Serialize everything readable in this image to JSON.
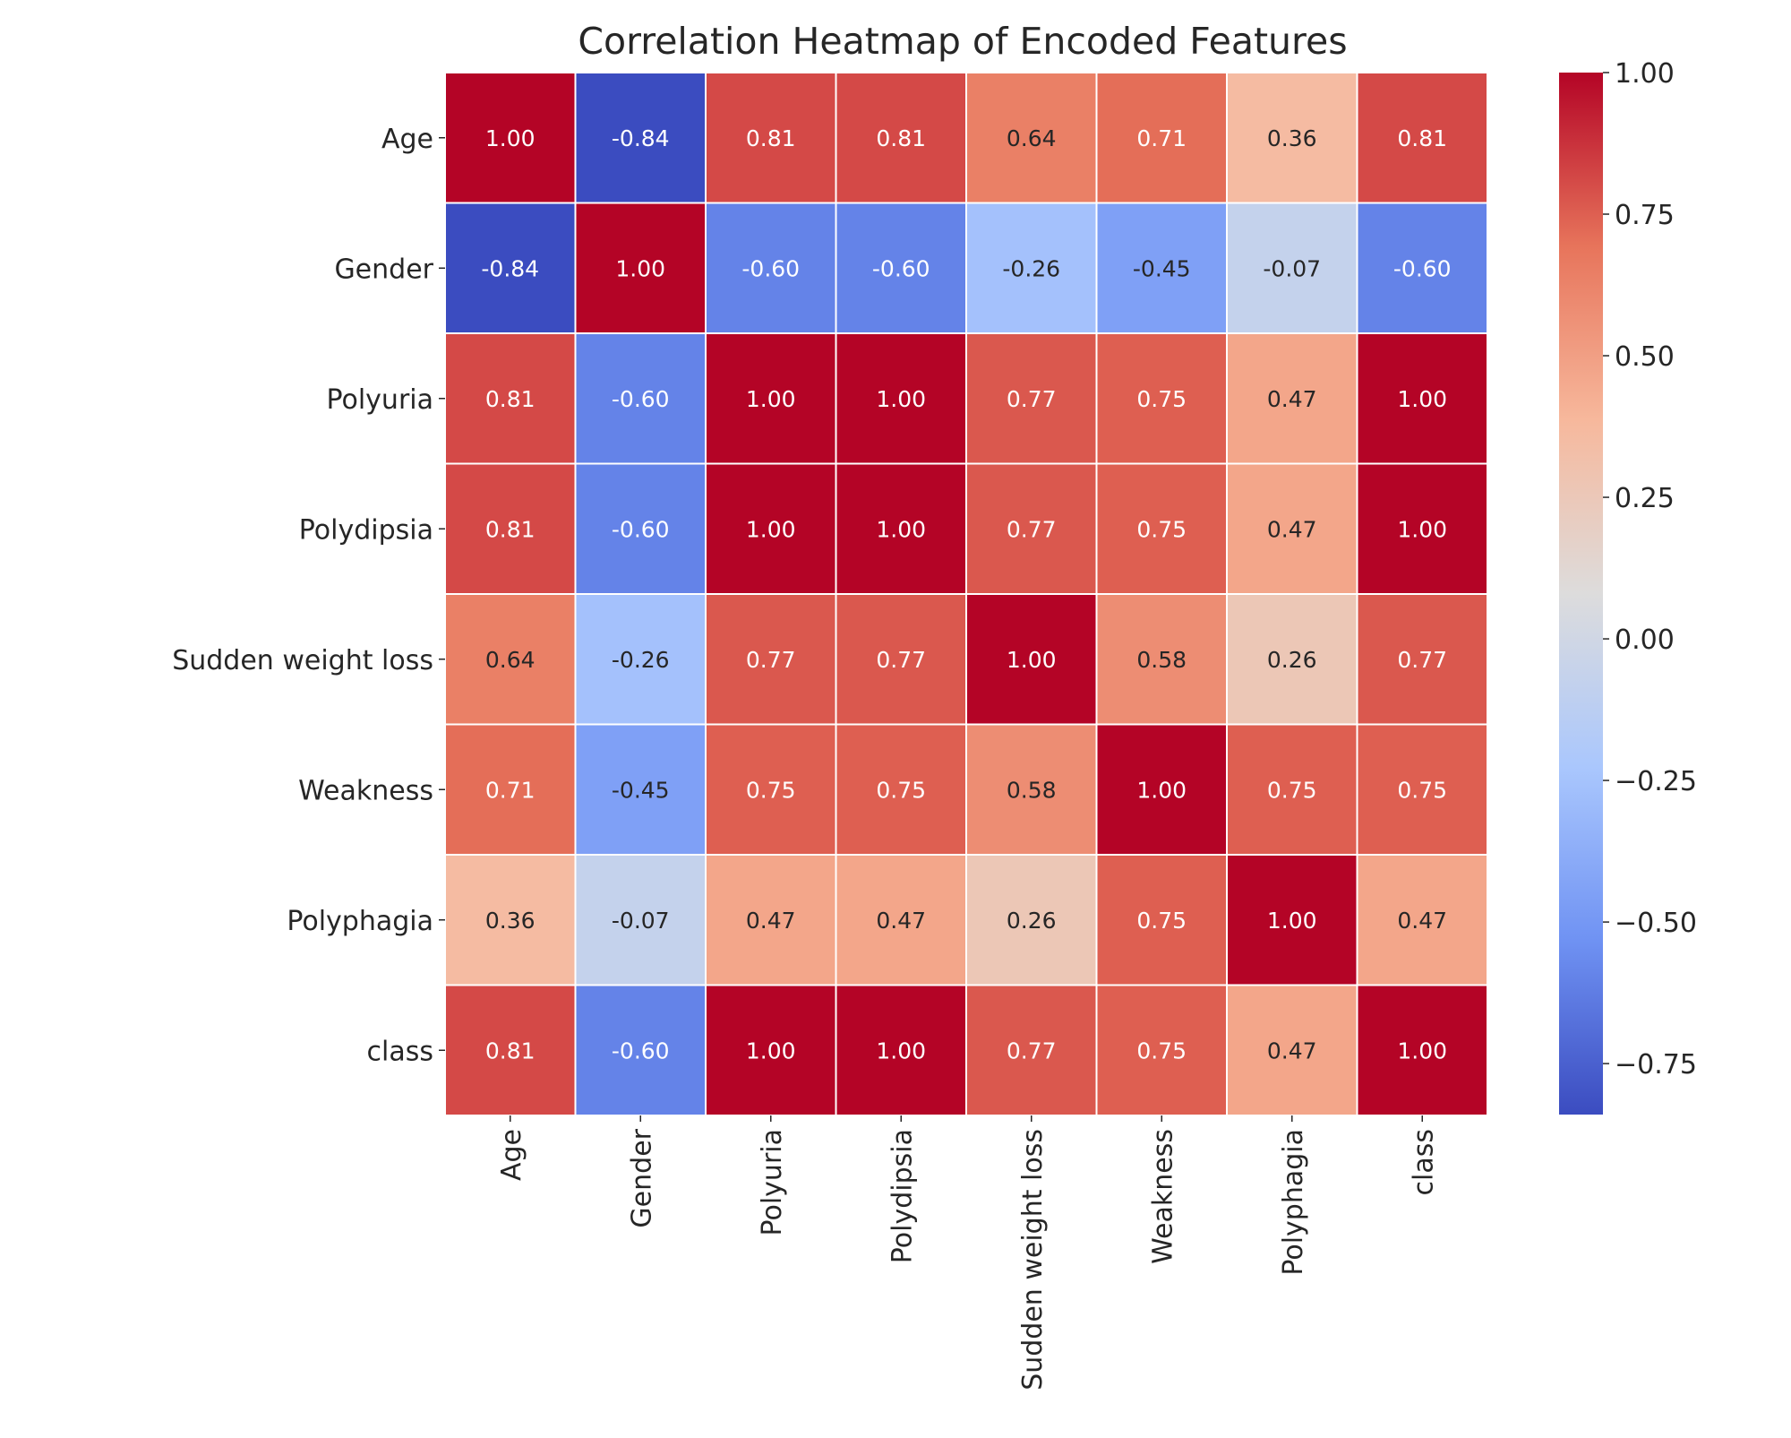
{
  "chart_data": {
    "type": "heatmap",
    "title": "Correlation Heatmap of Encoded Features",
    "rows": [
      "Age",
      "Gender",
      "Polyuria",
      "Polydipsia",
      "Sudden weight loss",
      "Weakness",
      "Polyphagia",
      "class"
    ],
    "columns": [
      "Age",
      "Gender",
      "Polyuria",
      "Polydipsia",
      "Sudden weight loss",
      "Weakness",
      "Polyphagia",
      "class"
    ],
    "values": [
      [
        1.0,
        -0.84,
        0.81,
        0.81,
        0.64,
        0.71,
        0.36,
        0.81
      ],
      [
        -0.84,
        1.0,
        -0.6,
        -0.6,
        -0.26,
        -0.45,
        -0.07,
        -0.6
      ],
      [
        0.81,
        -0.6,
        1.0,
        1.0,
        0.77,
        0.75,
        0.47,
        1.0
      ],
      [
        0.81,
        -0.6,
        1.0,
        1.0,
        0.77,
        0.75,
        0.47,
        1.0
      ],
      [
        0.64,
        -0.26,
        0.77,
        0.77,
        1.0,
        0.58,
        0.26,
        0.77
      ],
      [
        0.71,
        -0.45,
        0.75,
        0.75,
        0.58,
        1.0,
        0.75,
        0.75
      ],
      [
        0.36,
        -0.07,
        0.47,
        0.47,
        0.26,
        0.75,
        1.0,
        0.47
      ],
      [
        0.81,
        -0.6,
        1.0,
        1.0,
        0.77,
        0.75,
        0.47,
        1.0
      ]
    ],
    "value_format": "2 decimals",
    "colormap": "coolwarm",
    "colormap_stops": [
      "#3b4cc0",
      "#6f92f3",
      "#aac7fd",
      "#dddcdc",
      "#f7b89c",
      "#e7745b",
      "#b40426"
    ],
    "color_range": [
      -0.84,
      1.0
    ],
    "colorbar": {
      "ticks": [
        1.0,
        0.75,
        0.5,
        0.25,
        0.0,
        -0.25,
        -0.5,
        -0.75
      ],
      "tick_labels": [
        "1.00",
        "0.75",
        "0.50",
        "0.25",
        "0.00",
        "−0.25",
        "−0.50",
        "−0.75"
      ],
      "placement": "right"
    },
    "cell_border_color": "#ffffff"
  }
}
